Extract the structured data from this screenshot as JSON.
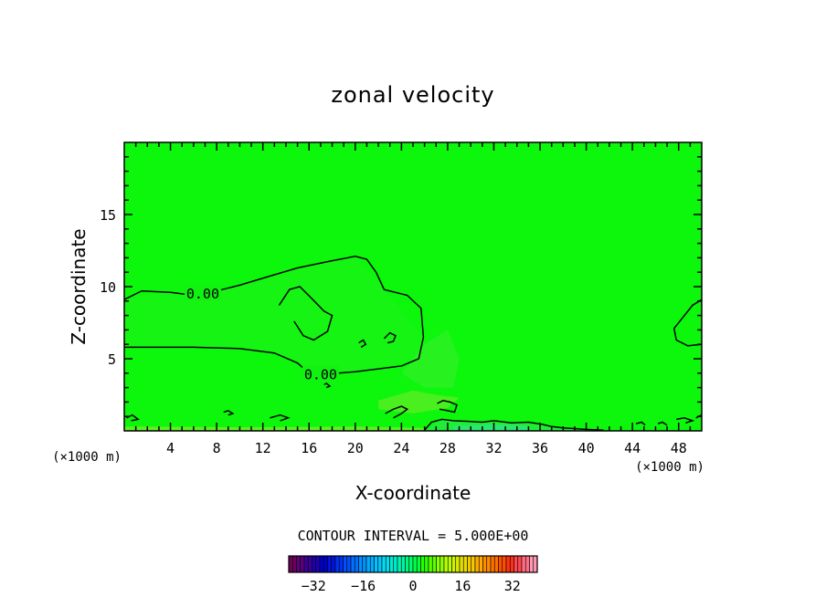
{
  "chart_data": {
    "type": "contour",
    "title": "zonal velocity",
    "xlabel": "X-coordinate",
    "ylabel": "Z-coordinate",
    "x_unit_label": "(×1000 m)",
    "xlim": [
      0,
      50
    ],
    "ylim": [
      0,
      20
    ],
    "x_ticks": [
      4,
      8,
      12,
      16,
      20,
      24,
      28,
      32,
      36,
      40,
      44,
      48
    ],
    "y_ticks": [
      5,
      10,
      15
    ],
    "contour_labels": [
      {
        "text": "0.00",
        "x": 6.8,
        "y": 9.5
      },
      {
        "text": "0.00",
        "x": 17.0,
        "y": 3.9
      }
    ],
    "contour_interval_text": "CONTOUR INTERVAL = 5.000E+00",
    "colorbar": {
      "range": [
        -40,
        40
      ],
      "tick_values": [
        -32,
        -16,
        0,
        16,
        32
      ],
      "tick_labels": [
        "−32",
        "−16",
        "0",
        "16",
        "32"
      ]
    },
    "zero_contours": [
      [
        [
          0,
          9.1
        ],
        [
          1.5,
          9.7
        ],
        [
          4,
          9.6
        ],
        [
          6,
          9.4
        ],
        [
          8,
          9.7
        ],
        [
          10,
          10.1
        ],
        [
          12.5,
          10.7
        ],
        [
          15,
          11.3
        ],
        [
          18,
          11.8
        ],
        [
          20,
          12.1
        ],
        [
          21,
          11.9
        ],
        [
          21.8,
          11.0
        ],
        [
          22.5,
          9.8
        ],
        [
          24.5,
          9.4
        ],
        [
          25.7,
          8.5
        ],
        [
          25.9,
          6.5
        ],
        [
          25.5,
          5.0
        ],
        [
          24,
          4.5
        ],
        [
          22,
          4.3
        ],
        [
          20,
          4.1
        ],
        [
          18.5,
          4.0
        ],
        [
          17.5,
          3.9
        ]
      ],
      [
        [
          16.0,
          4.0
        ],
        [
          15,
          4.7
        ],
        [
          13,
          5.4
        ],
        [
          10,
          5.7
        ],
        [
          6,
          5.8
        ],
        [
          3,
          5.8
        ],
        [
          0,
          5.8
        ]
      ],
      [
        [
          13.4,
          8.7
        ],
        [
          14.3,
          9.8
        ],
        [
          15.2,
          10.0
        ],
        [
          16.2,
          9.2
        ],
        [
          17.3,
          8.3
        ],
        [
          18.0,
          8.0
        ],
        [
          17.6,
          6.9
        ],
        [
          16.4,
          6.3
        ],
        [
          15.5,
          6.6
        ],
        [
          14.7,
          7.6
        ]
      ],
      [
        [
          22.5,
          6.4
        ],
        [
          23.0,
          6.8
        ],
        [
          23.5,
          6.6
        ],
        [
          23.3,
          6.2
        ],
        [
          22.8,
          6.1
        ]
      ],
      [
        [
          20.3,
          6.1
        ],
        [
          20.7,
          6.3
        ],
        [
          20.9,
          6.0
        ],
        [
          20.5,
          5.8
        ]
      ],
      [
        [
          50,
          9.1
        ],
        [
          49.2,
          8.7
        ],
        [
          48.4,
          7.9
        ],
        [
          47.6,
          7.1
        ],
        [
          47.8,
          6.3
        ],
        [
          48.8,
          5.9
        ],
        [
          50,
          6.0
        ]
      ],
      [
        [
          27.1,
          1.9
        ],
        [
          27.6,
          2.1
        ],
        [
          28.2,
          2.0
        ],
        [
          28.8,
          1.8
        ],
        [
          28.6,
          1.3
        ],
        [
          28.0,
          1.4
        ],
        [
          27.3,
          1.5
        ]
      ],
      [
        [
          22.6,
          1.2
        ],
        [
          23.3,
          1.5
        ],
        [
          24.0,
          1.7
        ],
        [
          24.5,
          1.5
        ],
        [
          24.0,
          1.2
        ],
        [
          23.3,
          0.9
        ]
      ],
      [
        [
          17.3,
          3.2
        ],
        [
          17.5,
          3.3
        ],
        [
          17.8,
          3.1
        ],
        [
          17.5,
          3.0
        ]
      ],
      [
        [
          0.2,
          0.9
        ],
        [
          0.7,
          1.1
        ],
        [
          1.2,
          0.8
        ],
        [
          0.6,
          0.7
        ]
      ],
      [
        [
          8.6,
          1.3
        ],
        [
          9.0,
          1.4
        ],
        [
          9.4,
          1.2
        ],
        [
          9.0,
          1.1
        ]
      ],
      [
        [
          12.6,
          0.9
        ],
        [
          13.5,
          1.1
        ],
        [
          14.2,
          0.9
        ],
        [
          13.5,
          0.7
        ]
      ],
      [
        [
          26,
          0.05
        ],
        [
          26.6,
          0.6
        ],
        [
          27.5,
          0.8
        ],
        [
          28.5,
          0.7
        ],
        [
          30,
          0.65
        ],
        [
          31,
          0.6
        ],
        [
          32,
          0.7
        ],
        [
          33.5,
          0.55
        ],
        [
          35,
          0.6
        ],
        [
          36.2,
          0.45
        ],
        [
          37,
          0.3
        ],
        [
          38,
          0.2
        ],
        [
          40,
          0.1
        ],
        [
          41.5,
          0.05
        ]
      ],
      [
        [
          44.3,
          0.5
        ],
        [
          44.8,
          0.6
        ],
        [
          45.1,
          0.4
        ]
      ],
      [
        [
          46.2,
          0.5
        ],
        [
          46.6,
          0.6
        ],
        [
          47.0,
          0.4
        ]
      ],
      [
        [
          47.8,
          0.8
        ],
        [
          48.5,
          0.9
        ],
        [
          49.2,
          0.7
        ],
        [
          48.6,
          0.55
        ]
      ],
      [
        [
          49.5,
          0.9
        ],
        [
          50,
          1.1
        ]
      ]
    ],
    "shaded_regions": [
      {
        "color": "#1ff21a",
        "path": [
          [
            0,
            9.1
          ],
          [
            3,
            9.6
          ],
          [
            8,
            9.7
          ],
          [
            15,
            11.3
          ],
          [
            20,
            12.1
          ],
          [
            22.5,
            9.8
          ],
          [
            25.9,
            6.5
          ],
          [
            25.5,
            5.0
          ],
          [
            20,
            4.1
          ],
          [
            17.5,
            3.9
          ],
          [
            13,
            5.4
          ],
          [
            6,
            5.8
          ],
          [
            0,
            5.8
          ]
        ]
      },
      {
        "color": "#3fec32",
        "path": [
          [
            24,
            4.0
          ],
          [
            26,
            6.0
          ],
          [
            28,
            7.0
          ],
          [
            29,
            5.0
          ],
          [
            28.5,
            3.0
          ],
          [
            26,
            3.0
          ]
        ]
      },
      {
        "color": "#7fe830",
        "path": [
          [
            22,
            2.1
          ],
          [
            25,
            2.8
          ],
          [
            27,
            2.5
          ],
          [
            29,
            2.3
          ],
          [
            28,
            1.6
          ],
          [
            25,
            1.2
          ],
          [
            22,
            1.5
          ]
        ]
      },
      {
        "color": "#a8e83a",
        "path": [
          [
            0,
            0.3
          ],
          [
            10,
            0.25
          ],
          [
            20,
            0.3
          ],
          [
            26,
            0.2
          ],
          [
            26,
            0
          ],
          [
            0,
            0
          ]
        ]
      },
      {
        "color": "#2ee85a",
        "path": [
          [
            26,
            0.05
          ],
          [
            27.5,
            0.8
          ],
          [
            30,
            0.65
          ],
          [
            33.5,
            0.55
          ],
          [
            36.2,
            0.45
          ],
          [
            38,
            0.2
          ],
          [
            41.5,
            0.05
          ],
          [
            41.5,
            0
          ],
          [
            26,
            0
          ]
        ]
      },
      {
        "color": "#38e0a0",
        "path": [
          [
            28.5,
            0.35
          ],
          [
            32,
            0.45
          ],
          [
            35,
            0.35
          ],
          [
            35,
            0.05
          ],
          [
            28.5,
            0.05
          ]
        ]
      }
    ],
    "colorbar_colors": [
      "#6e005a",
      "#5a007a",
      "#3c0096",
      "#1e00b4",
      "#0000c8",
      "#0014dc",
      "#0032f0",
      "#0050ff",
      "#0070ff",
      "#0090ff",
      "#00aaff",
      "#00c4ff",
      "#00dcf0",
      "#00ecd2",
      "#00f5a8",
      "#00fa78",
      "#00ff40",
      "#28ff00",
      "#5aff00",
      "#8cff00",
      "#b4ff00",
      "#d2f000",
      "#e6dc00",
      "#f5c800",
      "#ffaa00",
      "#ff8c00",
      "#ff6e00",
      "#ff5000",
      "#ff3214",
      "#ff4650",
      "#ff6e82",
      "#ff96b4"
    ]
  }
}
